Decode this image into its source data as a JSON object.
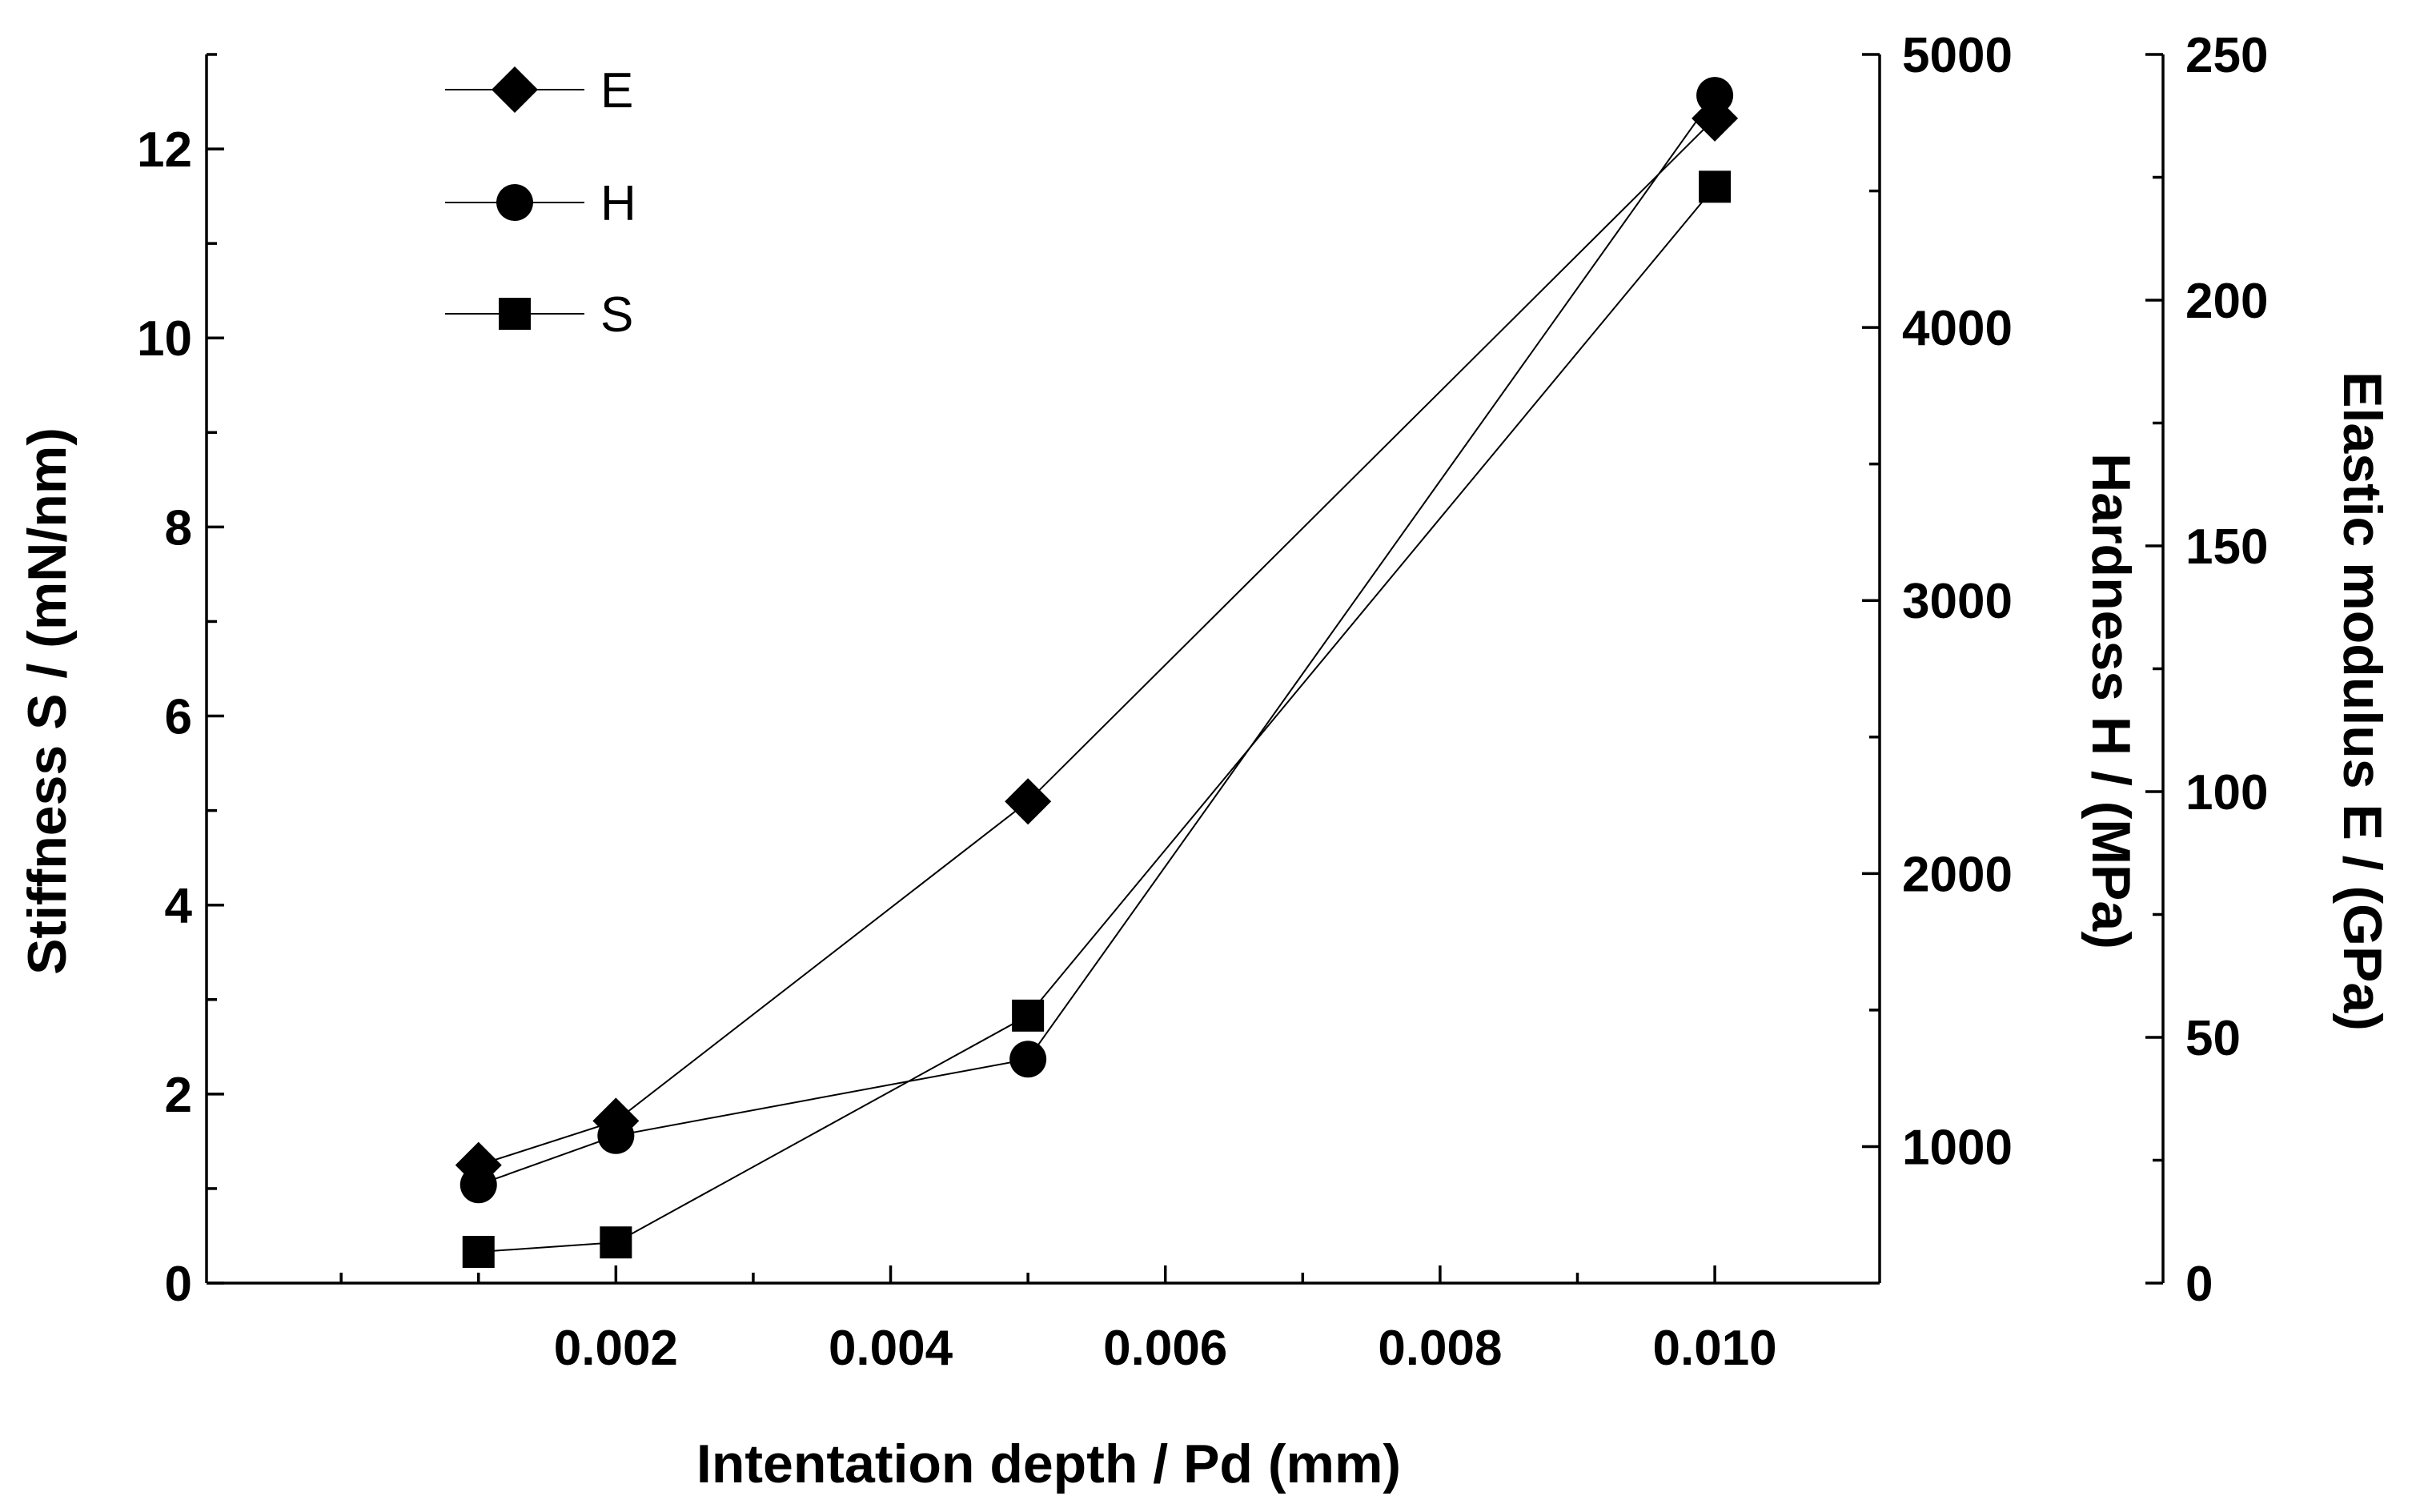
{
  "chart_data": {
    "type": "line",
    "title": "",
    "xlabel": "Intentation depth  /  Pd (mm)",
    "x_ticks": [
      "0.002",
      "0.004",
      "0.006",
      "0.008",
      "0.010"
    ],
    "x_tick_values": [
      0.002,
      0.004,
      0.006,
      0.008,
      0.01
    ],
    "xlim": [
      -0.00098,
      0.0112
    ],
    "axes": {
      "left": {
        "label": "Stiffness  S  /  (mN/nm)",
        "ylim": [
          0,
          13
        ],
        "ticks": [
          "0",
          "2",
          "4",
          "6",
          "8",
          "10",
          "12"
        ],
        "tick_values": [
          0,
          2,
          4,
          6,
          8,
          10,
          12
        ]
      },
      "middle": {
        "label": "Hardness H / (MPa)",
        "ylim": [
          500,
          5000
        ],
        "ticks": [
          "1000",
          "2000",
          "3000",
          "4000",
          "5000"
        ],
        "tick_values": [
          1000,
          2000,
          3000,
          4000,
          5000
        ]
      },
      "right": {
        "label": "Elastic modulus  E  /  (GPa)",
        "ylim": [
          0,
          250
        ],
        "ticks": [
          "0",
          "50",
          "100",
          "150",
          "200",
          "250"
        ],
        "tick_values": [
          0,
          50,
          100,
          150,
          200,
          250
        ]
      }
    },
    "series": [
      {
        "name": "E",
        "marker": "diamond",
        "axis": "right",
        "x": [
          0.001,
          0.002,
          0.005,
          0.01
        ],
        "y": [
          24,
          33,
          98,
          237
        ]
      },
      {
        "name": "H",
        "marker": "circle",
        "axis": "middle",
        "x": [
          0.001,
          0.002,
          0.005,
          0.01
        ],
        "y": [
          860,
          1040,
          1320,
          4850
        ]
      },
      {
        "name": "S",
        "marker": "square",
        "axis": "left",
        "x": [
          0.001,
          0.002,
          0.005,
          0.01
        ],
        "y": [
          0.33,
          0.43,
          2.83,
          11.6
        ]
      }
    ],
    "legend": {
      "position": "top-left",
      "entries": [
        "E",
        "H",
        "S"
      ]
    },
    "grid": false
  }
}
